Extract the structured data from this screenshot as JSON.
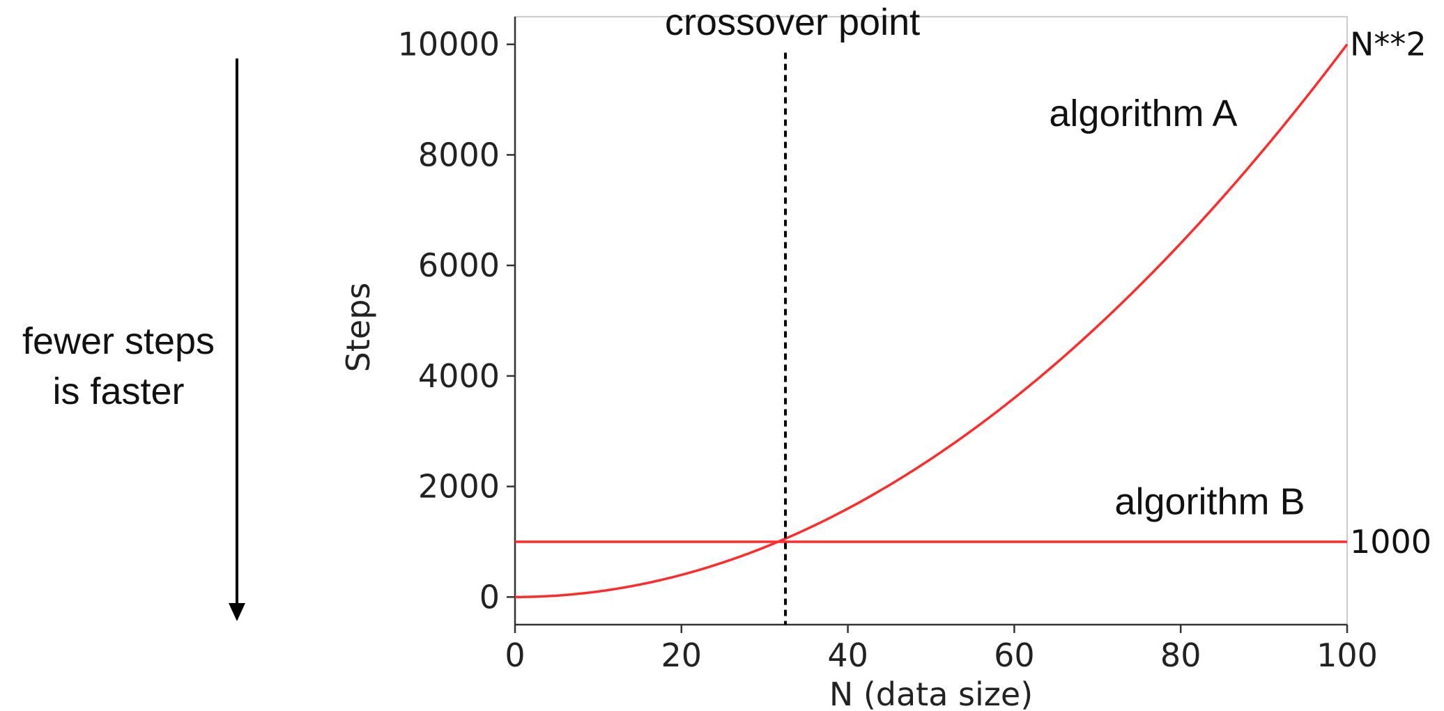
{
  "chart_data": {
    "type": "line",
    "xlabel": "N (data size)",
    "ylabel": "Steps",
    "xlim": [
      0,
      100
    ],
    "ylim": [
      -500,
      10500
    ],
    "x_ticks": [
      0,
      20,
      40,
      60,
      80,
      100
    ],
    "y_ticks": [
      0,
      2000,
      4000,
      6000,
      8000,
      10000
    ],
    "x_tick_labels": [
      "0",
      "20",
      "40",
      "60",
      "80",
      "100"
    ],
    "y_tick_labels": [
      "0",
      "2000",
      "4000",
      "6000",
      "8000",
      "10000"
    ],
    "grid": false,
    "series": [
      {
        "name": "algorithm A",
        "expression": "N**2",
        "x": [
          0,
          10,
          20,
          30,
          31.6,
          40,
          50,
          60,
          70,
          80,
          90,
          100
        ],
        "values": [
          0,
          100,
          400,
          900,
          1000,
          1600,
          2500,
          3600,
          4900,
          6400,
          8100,
          10000
        ],
        "end_label": "N**2",
        "color": "#ff2a2a"
      },
      {
        "name": "algorithm B",
        "x": [
          0,
          100
        ],
        "values": [
          1000,
          1000
        ],
        "end_label": "1000",
        "color": "#ff2a2a"
      }
    ],
    "annotations": {
      "crossover_label": "crossover point",
      "crossover_x": 32.5,
      "side_note_line1": "fewer steps",
      "side_note_line2": "is faster"
    }
  }
}
